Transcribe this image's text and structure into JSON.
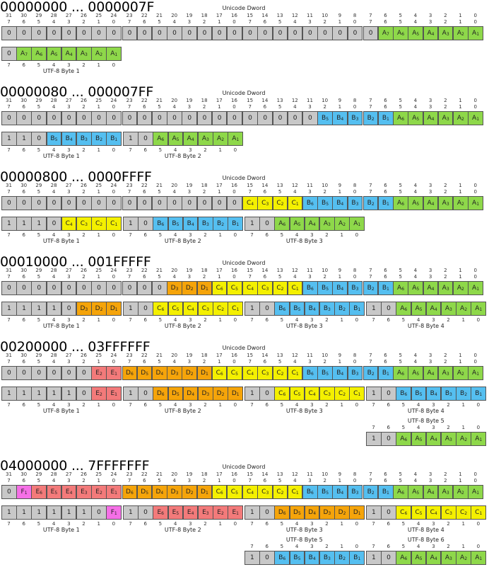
{
  "sections": [
    {
      "title": "00000000 ... 0000007F",
      "dword_label": "Unicode Dword",
      "dword": [
        "0",
        "0",
        "0",
        "0",
        "0",
        "0",
        "0",
        "0",
        "0",
        "0",
        "0",
        "0",
        "0",
        "0",
        "0",
        "0",
        "0",
        "0",
        "0",
        "0",
        "0",
        "0",
        "0",
        "0",
        "0",
        "A7",
        "A6",
        "A5",
        "A4",
        "A3",
        "A2",
        "A1"
      ],
      "bytes": [
        {
          "label": "UTF-8 Byte 1",
          "bits": [
            "0",
            "A7",
            "A6",
            "A5",
            "A4",
            "A3",
            "A2",
            "A1"
          ]
        }
      ]
    },
    {
      "title": "00000080 ... 000007FF",
      "dword_label": "Unicode Dword",
      "dword": [
        "0",
        "0",
        "0",
        "0",
        "0",
        "0",
        "0",
        "0",
        "0",
        "0",
        "0",
        "0",
        "0",
        "0",
        "0",
        "0",
        "0",
        "0",
        "0",
        "0",
        "0",
        "B5",
        "B4",
        "B3",
        "B2",
        "B1",
        "A6",
        "A5",
        "A4",
        "A3",
        "A2",
        "A1"
      ],
      "bytes": [
        {
          "label": "UTF-8 Byte 1",
          "bits": [
            "1",
            "1",
            "0",
            "B5",
            "B4",
            "B3",
            "B2",
            "B1"
          ]
        },
        {
          "label": "UTF-8 Byte 2",
          "bits": [
            "1",
            "0",
            "A6",
            "A5",
            "A4",
            "A3",
            "A2",
            "A1"
          ]
        }
      ]
    },
    {
      "title": "00000800 ... 0000FFFF",
      "dword_label": "Unicode Dword",
      "dword": [
        "0",
        "0",
        "0",
        "0",
        "0",
        "0",
        "0",
        "0",
        "0",
        "0",
        "0",
        "0",
        "0",
        "0",
        "0",
        "0",
        "C4",
        "C3",
        "C2",
        "C1",
        "B6",
        "B5",
        "B4",
        "B3",
        "B2",
        "B1",
        "A6",
        "A5",
        "A4",
        "A3",
        "A2",
        "A1"
      ],
      "bytes": [
        {
          "label": "UTF-8 Byte 1",
          "bits": [
            "1",
            "1",
            "1",
            "0",
            "C4",
            "C3",
            "C2",
            "C1"
          ]
        },
        {
          "label": "UTF-8 Byte 2",
          "bits": [
            "1",
            "0",
            "B6",
            "B5",
            "B4",
            "B3",
            "B2",
            "B1"
          ]
        },
        {
          "label": "UTF-8 Byte 3",
          "bits": [
            "1",
            "0",
            "A6",
            "A5",
            "A4",
            "A3",
            "A2",
            "A1"
          ]
        }
      ]
    },
    {
      "title": "00010000 ... 001FFFFF",
      "dword_label": "Unicode Dword",
      "dword": [
        "0",
        "0",
        "0",
        "0",
        "0",
        "0",
        "0",
        "0",
        "0",
        "0",
        "0",
        "D3",
        "D2",
        "D1",
        "C6",
        "C5",
        "C4",
        "C3",
        "C2",
        "C1",
        "B6",
        "B5",
        "B4",
        "B3",
        "B2",
        "B1",
        "A6",
        "A5",
        "A4",
        "A3",
        "A2",
        "A1"
      ],
      "bytes": [
        {
          "label": "UTF-8 Byte 1",
          "bits": [
            "1",
            "1",
            "1",
            "1",
            "0",
            "D3",
            "D2",
            "D1"
          ]
        },
        {
          "label": "UTF-8 Byte 2",
          "bits": [
            "1",
            "0",
            "C6",
            "C5",
            "C4",
            "C3",
            "C2",
            "C1"
          ]
        },
        {
          "label": "UTF-8 Byte 3",
          "bits": [
            "1",
            "0",
            "B6",
            "B5",
            "B4",
            "B3",
            "B2",
            "B1"
          ]
        },
        {
          "label": "UTF-8 Byte 4",
          "bits": [
            "1",
            "0",
            "A6",
            "A5",
            "A4",
            "A3",
            "A2",
            "A1"
          ]
        }
      ]
    },
    {
      "title": "00200000 ... 03FFFFFF",
      "dword_label": "Unicode Dword",
      "dword": [
        "0",
        "0",
        "0",
        "0",
        "0",
        "0",
        "E2",
        "E1",
        "D6",
        "D5",
        "D4",
        "D3",
        "D2",
        "D1",
        "C6",
        "C5",
        "C4",
        "C3",
        "C2",
        "C1",
        "B6",
        "B5",
        "B4",
        "B3",
        "B2",
        "B1",
        "A6",
        "A5",
        "A4",
        "A3",
        "A2",
        "A1"
      ],
      "bytes": [
        {
          "label": "UTF-8 Byte 1",
          "bits": [
            "1",
            "1",
            "1",
            "1",
            "1",
            "0",
            "E2",
            "E1"
          ]
        },
        {
          "label": "UTF-8 Byte 2",
          "bits": [
            "1",
            "0",
            "D6",
            "D5",
            "D4",
            "D3",
            "D2",
            "D1"
          ]
        },
        {
          "label": "UTF-8 Byte 3",
          "bits": [
            "1",
            "0",
            "C6",
            "C5",
            "C4",
            "C3",
            "C2",
            "C1"
          ]
        },
        {
          "label": "UTF-8 Byte 4",
          "bits": [
            "1",
            "0",
            "B6",
            "B5",
            "B4",
            "B3",
            "B2",
            "B1"
          ]
        },
        {
          "label": "UTF-8 Byte 5",
          "bits": [
            "1",
            "0",
            "A6",
            "A5",
            "A4",
            "A3",
            "A2",
            "A1"
          ]
        }
      ]
    },
    {
      "title": "04000000 ... 7FFFFFFF",
      "dword_label": "Unicode Dword",
      "dword": [
        "0",
        "F1",
        "E6",
        "E5",
        "E4",
        "E3",
        "E2",
        "E1",
        "D6",
        "D5",
        "D4",
        "D3",
        "D2",
        "D1",
        "C6",
        "C5",
        "C4",
        "C3",
        "C2",
        "C1",
        "B6",
        "B5",
        "B4",
        "B3",
        "B2",
        "B1",
        "A6",
        "A5",
        "A4",
        "A3",
        "A2",
        "A1"
      ],
      "bytes": [
        {
          "label": "UTF-8 Byte 1",
          "bits": [
            "1",
            "1",
            "1",
            "1",
            "1",
            "1",
            "0",
            "F1"
          ]
        },
        {
          "label": "UTF-8 Byte 2",
          "bits": [
            "1",
            "0",
            "E6",
            "E5",
            "E4",
            "E3",
            "E2",
            "E1"
          ]
        },
        {
          "label": "UTF-8 Byte 3",
          "bits": [
            "1",
            "0",
            "D6",
            "D5",
            "D4",
            "D3",
            "D2",
            "D1"
          ]
        },
        {
          "label": "UTF-8 Byte 4",
          "bits": [
            "1",
            "0",
            "C6",
            "C5",
            "C4",
            "C3",
            "C2",
            "C1"
          ]
        },
        {
          "label": "UTF-8 Byte 5",
          "bits": [
            "1",
            "0",
            "B6",
            "B5",
            "B4",
            "B3",
            "B2",
            "B1"
          ]
        },
        {
          "label": "UTF-8 Byte 6",
          "bits": [
            "1",
            "0",
            "A6",
            "A5",
            "A4",
            "A3",
            "A2",
            "A1"
          ]
        }
      ]
    }
  ],
  "colors": {
    "const": "#c8c8c8",
    "A": "#8ed84a",
    "B": "#55bff0",
    "C": "#f4f000",
    "D": "#f5a40a",
    "E": "#f37a7a",
    "F": "#f56fe6"
  }
}
